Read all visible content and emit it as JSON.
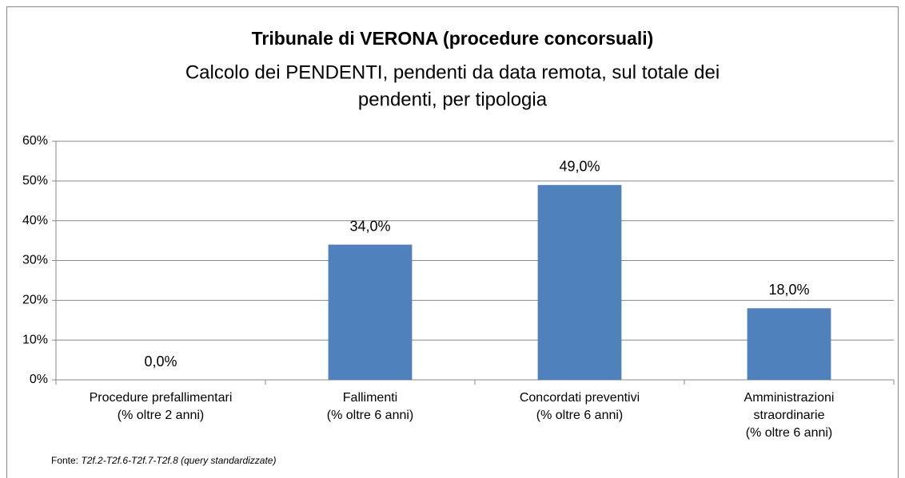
{
  "chart_data": {
    "type": "bar",
    "title": "Tribunale di VERONA (procedure concorsuali)",
    "subtitle": [
      "Calcolo dei PENDENTI, pendenti da data remota, sul totale dei",
      "pendenti, per tipologia"
    ],
    "categories": [
      [
        "Procedure prefallimentari",
        "(% oltre 2 anni)"
      ],
      [
        "Fallimenti",
        "(% oltre 6 anni)"
      ],
      [
        "Concordati preventivi",
        "(% oltre 6 anni)"
      ],
      [
        "Amministrazioni",
        "straordinarie",
        "(% oltre 6 anni)"
      ]
    ],
    "values": [
      0,
      34,
      49,
      18
    ],
    "value_labels": [
      "0,0%",
      "34,0%",
      "49,0%",
      "18,0%"
    ],
    "color": "#4f81bd",
    "ylim": [
      0,
      60
    ],
    "yticks": [
      {
        "value": 0,
        "label": "0%"
      },
      {
        "value": 10,
        "label": "10%"
      },
      {
        "value": 20,
        "label": "20%"
      },
      {
        "value": 30,
        "label": "30%"
      },
      {
        "value": 40,
        "label": "40%"
      },
      {
        "value": 50,
        "label": "50%"
      },
      {
        "value": 60,
        "label": "60%"
      }
    ],
    "grid": true,
    "source_label": "Fonte:",
    "source": "T2f.2-T2f.6-T2f.7-T2f.8 (query standardizzate)"
  }
}
